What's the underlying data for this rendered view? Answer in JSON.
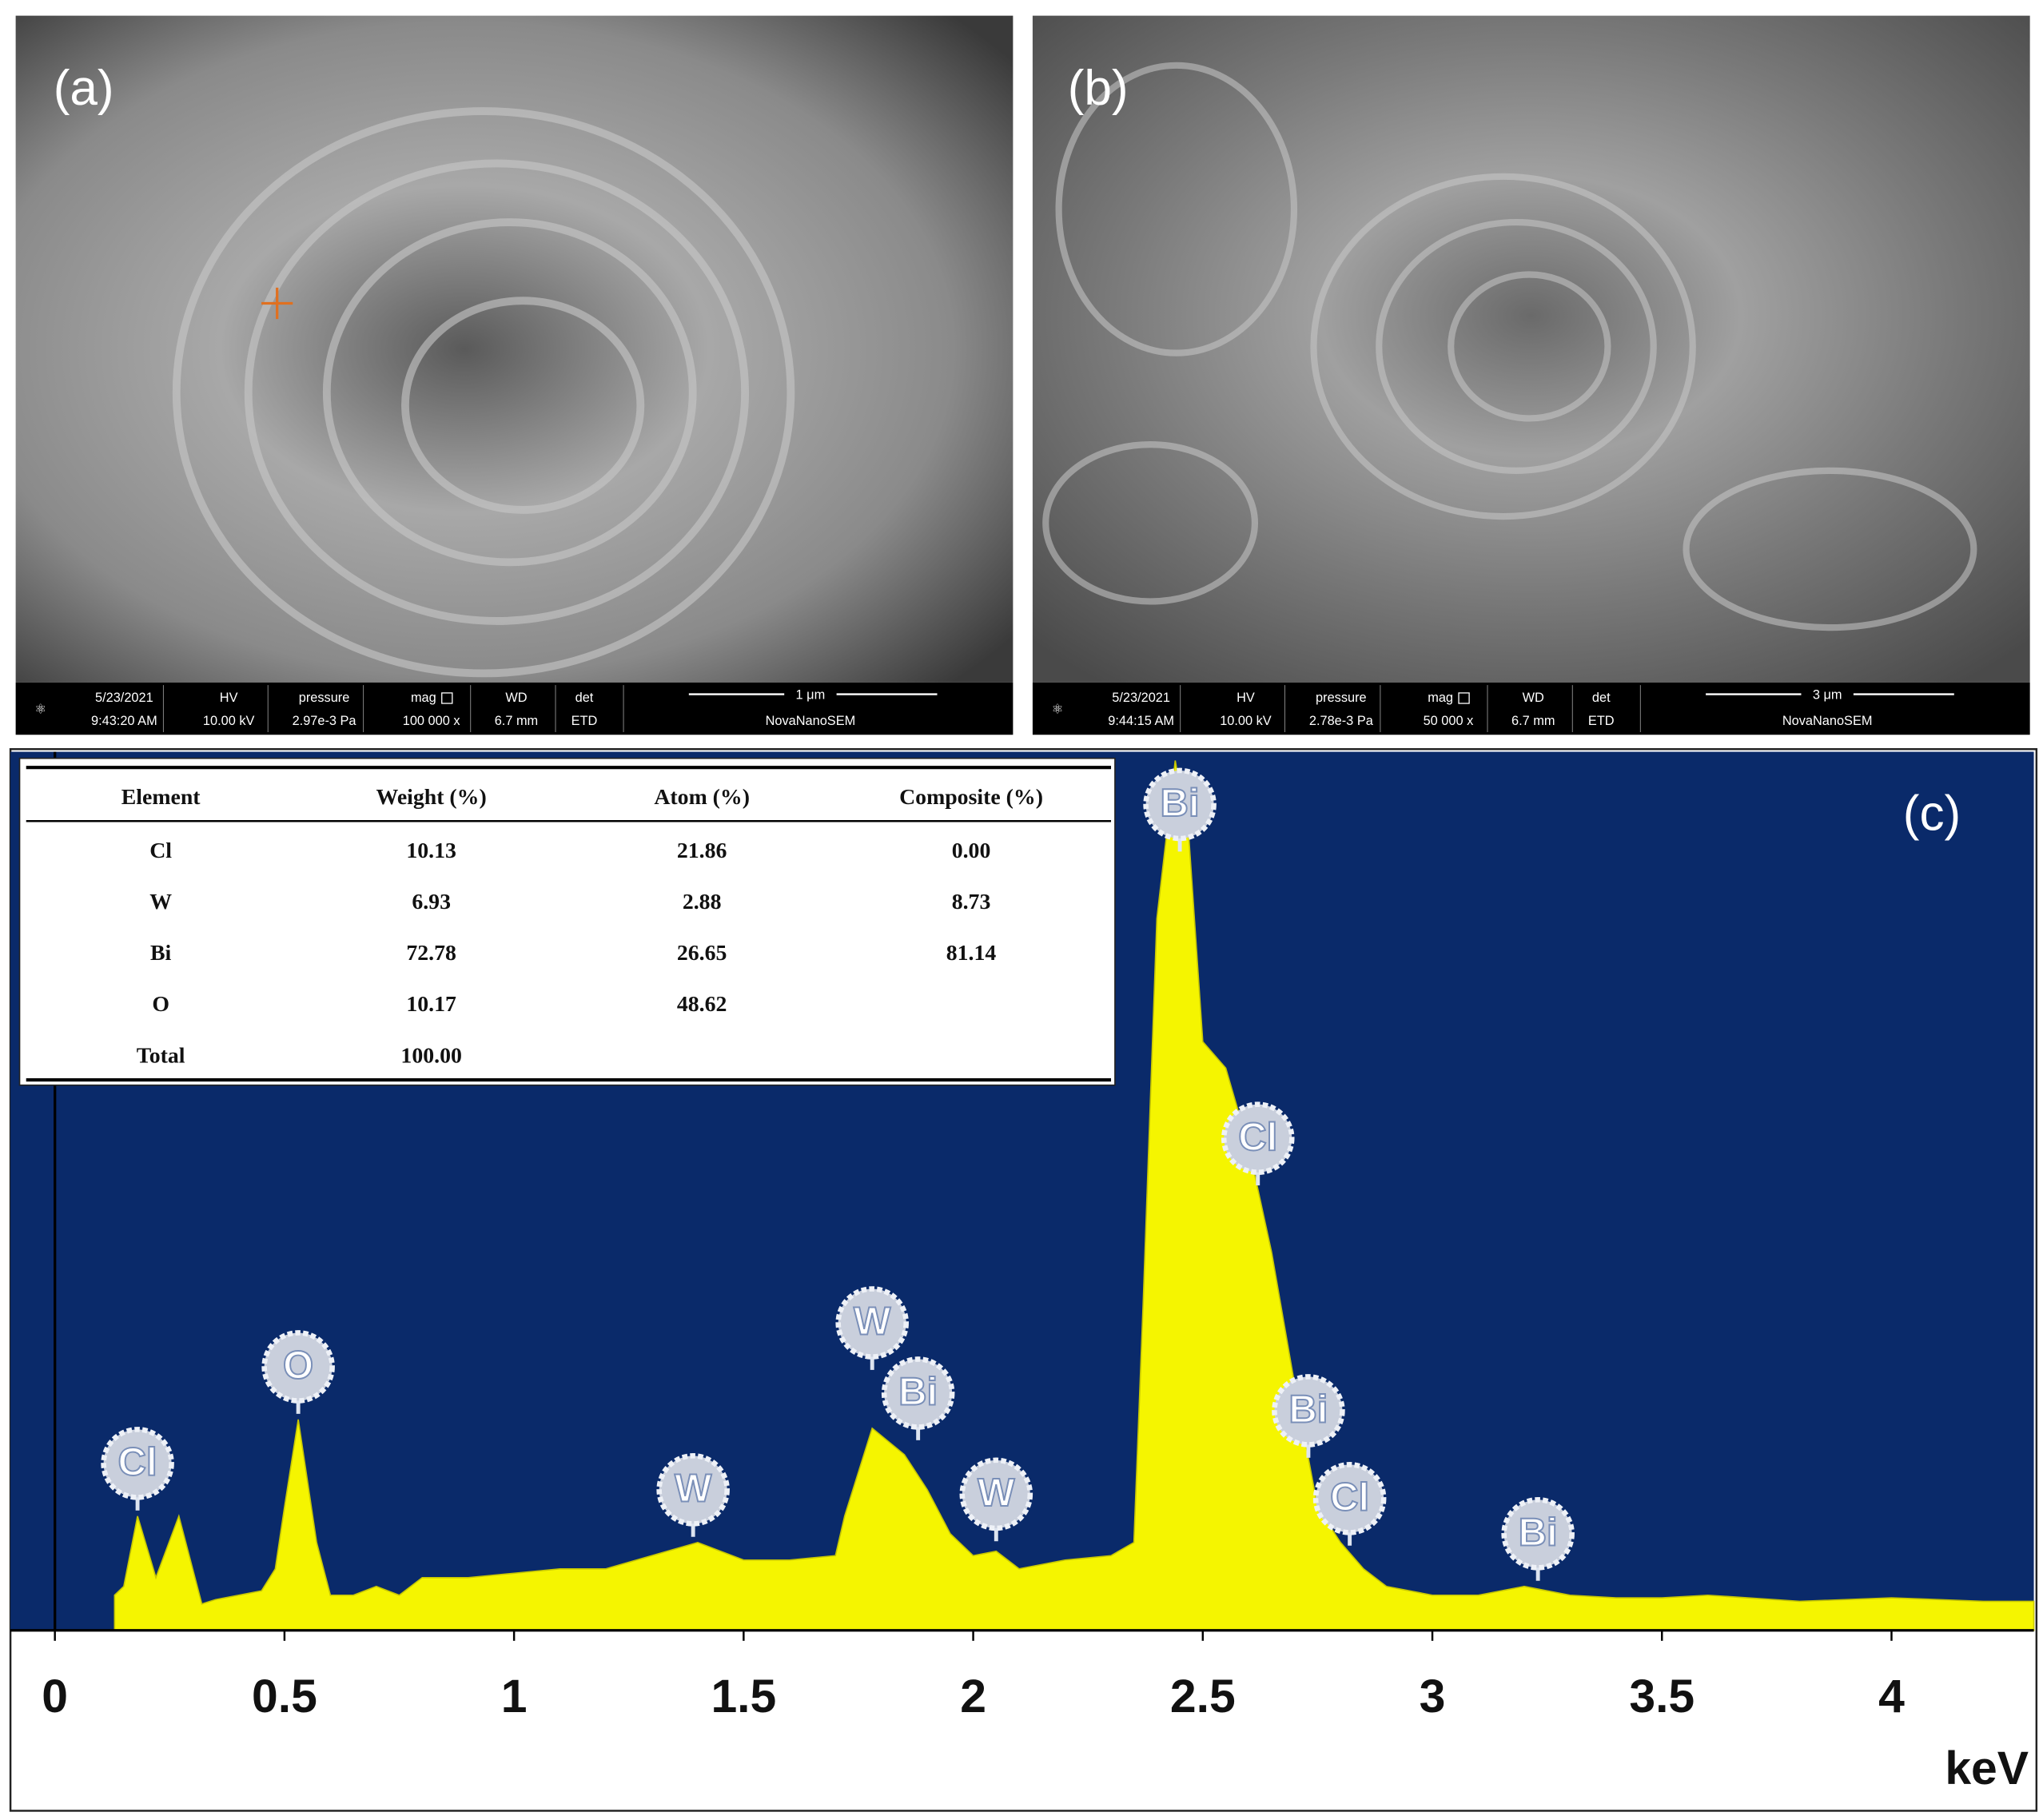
{
  "panels": [
    "(a)",
    "(b)",
    "(c)"
  ],
  "sem_images": [
    {
      "info": [
        [
          "5/23/2021",
          "9:43:20 AM"
        ],
        [
          "HV",
          "10.00 kV"
        ],
        [
          "pressure",
          "2.97e-3 Pa"
        ],
        [
          "mag",
          "100 000 x"
        ],
        [
          "WD",
          "6.7 mm"
        ],
        [
          "det",
          "ETD"
        ]
      ],
      "scale": "1 μm",
      "instrument": "NovaNanoSEM"
    },
    {
      "info": [
        [
          "5/23/2021",
          "9:44:15 AM"
        ],
        [
          "HV",
          "10.00 kV"
        ],
        [
          "pressure",
          "2.78e-3 Pa"
        ],
        [
          "mag",
          "50 000 x"
        ],
        [
          "WD",
          "6.7 mm"
        ],
        [
          "det",
          "ETD"
        ]
      ],
      "scale": "3 μm",
      "instrument": "NovaNanoSEM"
    }
  ],
  "table": {
    "columns": [
      "Element",
      "Weight (%)",
      "Atom (%)",
      "Composite (%)"
    ],
    "rows": [
      [
        "Cl",
        "10.13",
        "21.86",
        "0.00"
      ],
      [
        "W",
        "6.93",
        "2.88",
        "8.73"
      ],
      [
        "Bi",
        "72.78",
        "26.65",
        "81.14"
      ],
      [
        "O",
        "10.17",
        "48.62"
      ],
      [
        "Total",
        "100.00"
      ]
    ]
  },
  "chart_data": {
    "type": "area",
    "x_label": "keV",
    "color": "#f5f500",
    "x": [
      0.13,
      0.15,
      0.18,
      0.22,
      0.27,
      0.32,
      0.35,
      0.4,
      0.45,
      0.48,
      0.5,
      0.53,
      0.57,
      0.6,
      0.65,
      0.7,
      0.75,
      0.8,
      0.9,
      1.0,
      1.1,
      1.2,
      1.3,
      1.4,
      1.5,
      1.6,
      1.7,
      1.72,
      1.78,
      1.85,
      1.9,
      1.95,
      2.0,
      2.05,
      2.1,
      2.2,
      2.3,
      2.35,
      2.37,
      2.4,
      2.44,
      2.47,
      2.5,
      2.55,
      2.6,
      2.65,
      2.7,
      2.75,
      2.8,
      2.85,
      2.9,
      3.0,
      3.1,
      3.2,
      3.3,
      3.4,
      3.5,
      3.6,
      3.8,
      4.0,
      4.2,
      4.31
    ],
    "values": [
      4,
      5,
      13,
      6,
      13,
      3,
      3.5,
      4,
      4.5,
      7,
      14,
      24,
      10,
      4,
      4,
      5,
      4,
      6,
      6,
      6.5,
      7,
      7,
      8.5,
      10,
      8,
      8,
      8.5,
      13,
      23,
      20,
      16,
      11,
      8.5,
      9,
      7,
      8,
      8.5,
      10,
      37,
      81,
      99,
      90,
      67,
      64,
      55,
      43,
      28,
      14,
      10,
      7,
      5,
      4,
      4,
      5,
      4,
      3.7,
      3.7,
      4,
      3.3,
      3.7,
      3.3,
      3.3
    ],
    "xlim": [
      0,
      4.31
    ],
    "ylim": [
      0,
      100
    ],
    "xticks": [
      0,
      0.5,
      1,
      1.5,
      2,
      2.5,
      3,
      3.5,
      4
    ],
    "peak_labels": [
      {
        "label": "Cl",
        "x": 0.18,
        "y": 19
      },
      {
        "label": "O",
        "x": 0.53,
        "y": 30
      },
      {
        "label": "W",
        "x": 1.39,
        "y": 16
      },
      {
        "label": "W",
        "x": 1.78,
        "y": 35
      },
      {
        "label": "Bi",
        "x": 1.88,
        "y": 27
      },
      {
        "label": "W",
        "x": 2.05,
        "y": 15.5
      },
      {
        "label": "Bi",
        "x": 2.45,
        "y": 94
      },
      {
        "label": "Cl",
        "x": 2.62,
        "y": 56
      },
      {
        "label": "Bi",
        "x": 2.73,
        "y": 25
      },
      {
        "label": "Cl",
        "x": 2.82,
        "y": 15
      },
      {
        "label": "Bi",
        "x": 3.23,
        "y": 11
      }
    ]
  }
}
